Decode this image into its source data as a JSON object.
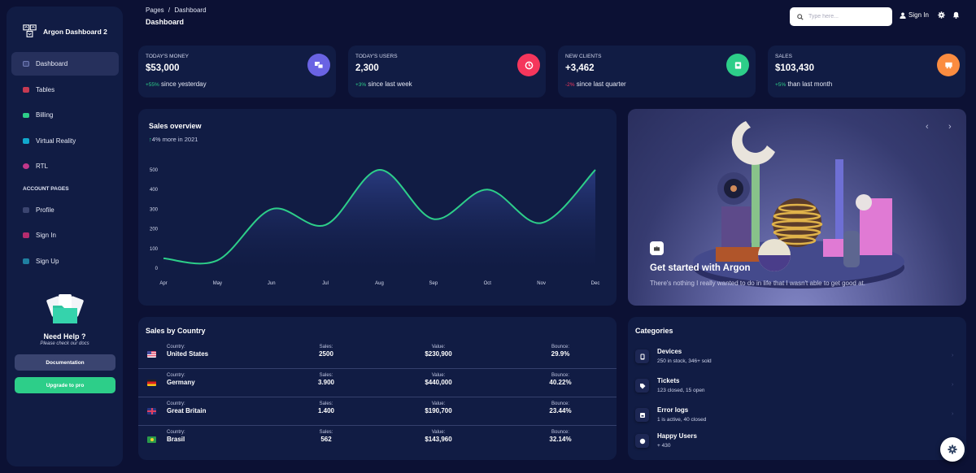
{
  "sidebar": {
    "brand": "Argon Dashboard 2",
    "items": [
      {
        "label": "Dashboard",
        "icon": "tv-icon",
        "color": "#5e72e4",
        "active": true
      },
      {
        "label": "Tables",
        "icon": "calendar-icon",
        "color": "#f5365c"
      },
      {
        "label": "Billing",
        "icon": "credit-card-icon",
        "color": "#2dce89"
      },
      {
        "label": "Virtual Reality",
        "icon": "app-icon",
        "color": "#11cdef"
      },
      {
        "label": "RTL",
        "icon": "world-icon",
        "color": "#f3a4b5"
      }
    ],
    "section_label": "ACCOUNT PAGES",
    "account_items": [
      {
        "label": "Profile",
        "icon": "user-icon",
        "color": "#6b78a8"
      },
      {
        "label": "Sign In",
        "icon": "copy-icon",
        "color": "#f5365c"
      },
      {
        "label": "Sign Up",
        "icon": "collection-icon",
        "color": "#11cdef"
      }
    ],
    "help": {
      "title": "Need Help ?",
      "subtitle": "Please check our docs",
      "doc_button": "Documentation",
      "upgrade_button": "Upgrade to pro"
    }
  },
  "header": {
    "breadcrumb_root": "Pages",
    "breadcrumb_sep": "/",
    "breadcrumb_current": "Dashboard",
    "title": "Dashboard",
    "search_placeholder": "Type here...",
    "signin_label": "Sign In"
  },
  "stats": [
    {
      "label": "TODAY'S MONEY",
      "value": "$53,000",
      "change": "+55%",
      "change_color": "#2dce89",
      "caption": "since yesterday",
      "icon": "money-coins-icon",
      "icon_bg": "#6a63e3"
    },
    {
      "label": "TODAY'S USERS",
      "value": "2,300",
      "change": "+3%",
      "change_color": "#2dce89",
      "caption": "since last week",
      "icon": "world-icon",
      "icon_bg": "#f5365c"
    },
    {
      "label": "NEW CLIENTS",
      "value": "+3,462",
      "change": "-2%",
      "change_color": "#f5365c",
      "caption": "since last quarter",
      "icon": "paper-diploma-icon",
      "icon_bg": "#2dce89"
    },
    {
      "label": "SALES",
      "value": "$103,430",
      "change": "+5%",
      "change_color": "#2dce89",
      "caption": "than last month",
      "icon": "cart-icon",
      "icon_bg": "#fb6340"
    }
  ],
  "sales_overview": {
    "title": "Sales overview",
    "subtitle": "4% more in 2021",
    "arrow": "↑"
  },
  "chart_data": {
    "type": "line",
    "title": "Sales overview",
    "subtitle": "4% more in 2021",
    "x": [
      "Apr",
      "May",
      "Jun",
      "Jul",
      "Aug",
      "Sep",
      "Oct",
      "Nov",
      "Dec"
    ],
    "series": [
      {
        "name": "Sales",
        "values": [
          50,
          40,
          300,
          220,
          500,
          250,
          400,
          230,
          500
        ],
        "color": "#2dce89"
      }
    ],
    "yticks": [
      0,
      100,
      200,
      300,
      400,
      500
    ],
    "ylim": [
      0,
      500
    ],
    "xlabel": "",
    "ylabel": "",
    "grid": false,
    "fill": "gradient-area"
  },
  "hero": {
    "title": "Get started with Argon",
    "subtitle": "There's nothing I really wanted to do in life that I wasn't able to get good at.",
    "prev": "‹",
    "next": "›"
  },
  "sales_by_country": {
    "title": "Sales by Country",
    "labels": {
      "country": "Country:",
      "sales": "Sales:",
      "value": "Value:",
      "bounce": "Bounce:"
    },
    "rows": [
      {
        "country": "United States",
        "sales": "2500",
        "value": "$230,900",
        "bounce": "29.9%",
        "flag": "us-flag-icon"
      },
      {
        "country": "Germany",
        "sales": "3.900",
        "value": "$440,000",
        "bounce": "40.22%",
        "flag": "de-flag-icon"
      },
      {
        "country": "Great Britain",
        "sales": "1.400",
        "value": "$190,700",
        "bounce": "23.44%",
        "flag": "gb-flag-icon"
      },
      {
        "country": "Brasil",
        "sales": "562",
        "value": "$143,960",
        "bounce": "32.14%",
        "flag": "br-flag-icon"
      }
    ]
  },
  "categories": {
    "title": "Categories",
    "items": [
      {
        "name": "Devices",
        "desc": "250 in stock, 346+ sold",
        "icon": "mobile-icon"
      },
      {
        "name": "Tickets",
        "desc": "123 closed, 15 open",
        "icon": "tag-icon"
      },
      {
        "name": "Error logs",
        "desc": "1 is active, 40 closed",
        "icon": "box-icon"
      },
      {
        "name": "Happy Users",
        "desc": "+ 430",
        "icon": "happy-icon"
      }
    ],
    "arrow": "›"
  }
}
